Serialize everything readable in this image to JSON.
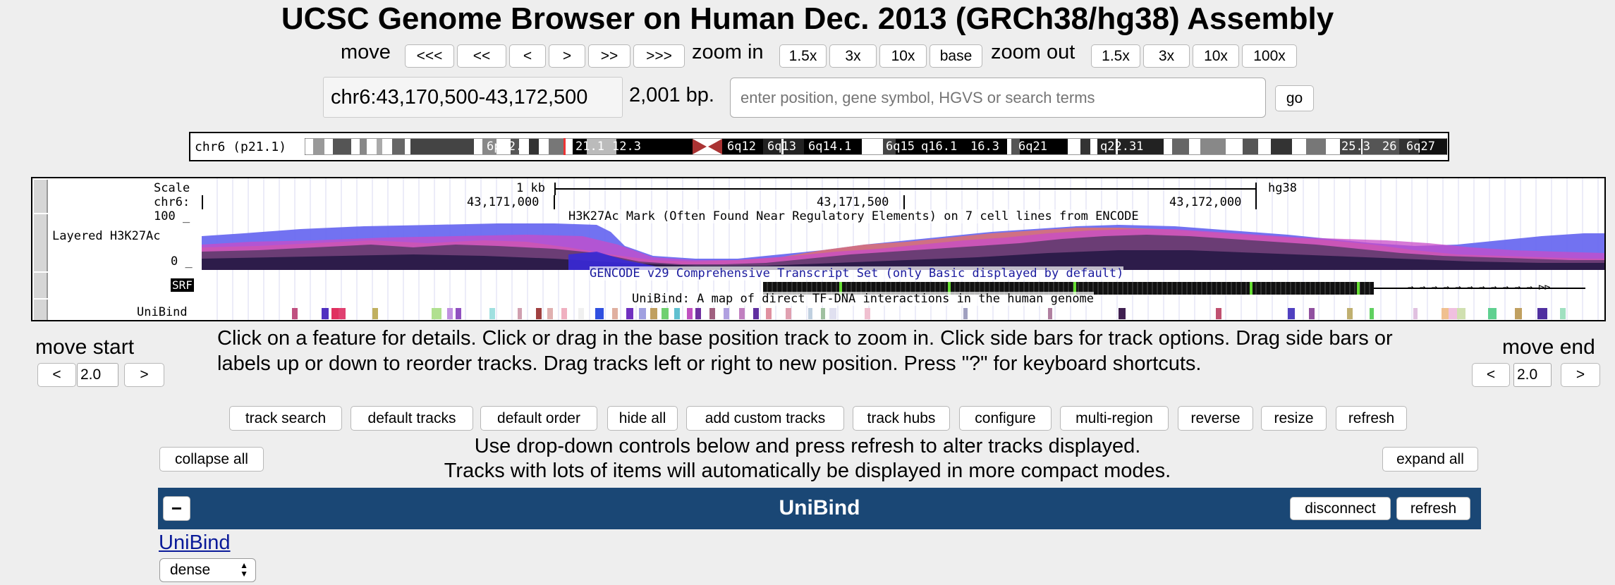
{
  "title": "UCSC Genome Browser on Human Dec. 2013 (GRCh38/hg38) Assembly",
  "nav": {
    "move_label": "move",
    "move_buttons": [
      "<<<",
      "<<",
      "<",
      ">",
      ">>",
      ">>>"
    ],
    "zoom_in_label": "zoom in",
    "zoom_in_buttons": [
      "1.5x",
      "3x",
      "10x",
      "base"
    ],
    "zoom_out_label": "zoom out",
    "zoom_out_buttons": [
      "1.5x",
      "3x",
      "10x",
      "100x"
    ]
  },
  "position": {
    "value": "chr6:43,170,500-43,172,500",
    "size": "2,001 bp.",
    "search_placeholder": "enter position, gene symbol, HGVS or search terms",
    "go_label": "go"
  },
  "ideogram": {
    "chrom_label": "chr6 (p21.1)",
    "bands": [
      "6p22.3",
      "21.1",
      "12.3",
      "6q12",
      "6q13",
      "6q14.1",
      "6q15",
      "q16.1",
      "16.3",
      "6q21",
      "q22.31",
      "25.3",
      "26",
      "6q27"
    ]
  },
  "tracks": {
    "scale_label": "Scale",
    "chrom_label": "chr6:",
    "scale_bar": "1 kb",
    "assembly": "hg38",
    "coords": [
      "43,171,000",
      "43,171,500",
      "43,172,000"
    ],
    "h3k27_max": "100 _",
    "h3k27_min": "0 _",
    "h3k27_label": "Layered H3K27Ac",
    "h3k27_desc": "H3K27Ac Mark (Often Found Near Regulatory Elements) on 7 cell lines from ENCODE",
    "gencode_desc": "GENCODE v29 Comprehensive Transcript Set (only Basic displayed by default)",
    "gene_label": "SRF",
    "unibind_desc": "UniBind: A map of direct TF-DNA interactions in the human genome",
    "unibind_label": "UniBind"
  },
  "move_start": {
    "label": "move start",
    "value": "2.0",
    "left": "<",
    "right": ">"
  },
  "move_end": {
    "label": "move end",
    "value": "2.0",
    "left": "<",
    "right": ">"
  },
  "instructions": "Click on a feature for details. Click or drag in the base position track to zoom in. Click side bars for track options. Drag side bars or labels up or down to reorder tracks. Drag tracks left or right to new position. Press \"?\" for keyboard shortcuts.",
  "toolbar": [
    "track search",
    "default tracks",
    "default order",
    "hide all",
    "add custom tracks",
    "track hubs",
    "configure",
    "multi-region",
    "reverse",
    "resize",
    "refresh"
  ],
  "controls": {
    "collapse_all": "collapse all",
    "expand_all": "expand all",
    "info_line1": "Use drop-down controls below and press refresh to alter tracks displayed.",
    "info_line2": "Tracks with lots of items will automatically be displayed in more compact modes."
  },
  "hub": {
    "toggle": "−",
    "title": "UniBind",
    "disconnect": "disconnect",
    "refresh": "refresh",
    "track_link": "UniBind",
    "mode": "dense"
  },
  "colors": {
    "hub_header": "#1a4775",
    "link": "#0a1a99",
    "gencode_text": "#1a1a9e"
  }
}
